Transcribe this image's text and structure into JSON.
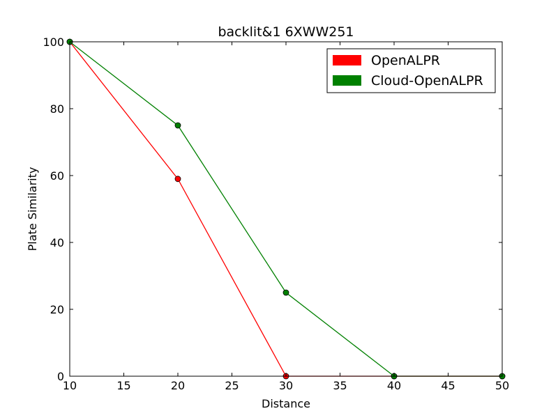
{
  "chart_data": {
    "type": "line",
    "title": "backlit&1 6XWW251",
    "xlabel": "Distance",
    "ylabel": "Plate Similarity",
    "xlim": [
      10,
      50
    ],
    "ylim": [
      0,
      100
    ],
    "xticks": [
      10,
      15,
      20,
      25,
      30,
      35,
      40,
      45,
      50
    ],
    "yticks": [
      0,
      20,
      40,
      60,
      80,
      100
    ],
    "grid": false,
    "legend_position": "top-right",
    "x": [
      10,
      20,
      30,
      40,
      50
    ],
    "series": [
      {
        "name": "OpenALPR",
        "color": "#ff0000",
        "values": [
          100,
          59,
          0,
          0,
          0
        ]
      },
      {
        "name": "Cloud-OpenALPR",
        "color": "#008000",
        "values": [
          100,
          75,
          25,
          0,
          0
        ]
      }
    ]
  }
}
